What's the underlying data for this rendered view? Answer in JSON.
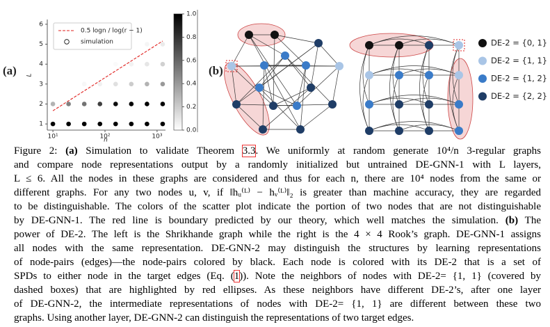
{
  "panel_labels": [
    "(a)",
    "(b)"
  ],
  "chart_data": {
    "type": "scatter",
    "xlabel": "n",
    "ylabel": "L",
    "xscale": "log",
    "xlim": [
      7.8,
      1450
    ],
    "ylim": [
      0.69,
      6.24
    ],
    "xticks": [
      {
        "value": 10,
        "label": "10¹"
      },
      {
        "value": 100,
        "label": "10²"
      },
      {
        "value": 1000,
        "label": "10³"
      }
    ],
    "yticks": [
      1,
      2,
      3,
      4,
      5,
      6
    ],
    "legend": "upper left",
    "colorbar": {
      "lim": [
        0,
        1
      ],
      "ticks": [
        {
          "value": 0,
          "label": "0.0"
        },
        0.2,
        0.4,
        0.6,
        0.8,
        {
          "value": 1,
          "label": "1.0"
        }
      ]
    },
    "series": [
      {
        "name": "0.5 logn / log(r − 1)",
        "type": "line",
        "style": "dashed",
        "color": "#e0201e",
        "x": [
          10,
          1280
        ],
        "values": [
          1.66,
          5.16
        ]
      },
      {
        "name": "simulation",
        "type": "scatter",
        "x": [
          10,
          20,
          40,
          80,
          160,
          320,
          640,
          1280,
          10,
          20,
          40,
          80,
          160,
          320,
          640,
          1280,
          40,
          80,
          160,
          320,
          640,
          1280,
          160,
          320,
          640,
          1280,
          640,
          1280
        ],
        "values": [
          1,
          1,
          1,
          1,
          1,
          1,
          1,
          1,
          2,
          2,
          2,
          2,
          2,
          2,
          2,
          2,
          3,
          3,
          3,
          3,
          3,
          3,
          4,
          4,
          4,
          4,
          5,
          5
        ],
        "shade": [
          1,
          1,
          1,
          1,
          1,
          1,
          1,
          1,
          0.3,
          0.5,
          0.55,
          0.75,
          0.95,
          1,
          1,
          1,
          0.03,
          0.06,
          0.12,
          0.2,
          0.3,
          0.4,
          0.02,
          0.05,
          0.1,
          0.18,
          0.04,
          0.08
        ]
      }
    ]
  },
  "diagram": {
    "legend": [
      "DE-2 = {0, 1}",
      "DE-2 = {1, 1}",
      "DE-2 = {1, 2}",
      "DE-2 = {2, 2}"
    ]
  },
  "caption": {
    "lines": [
      [
        "Figure 2: ",
        "(a)",
        " Simulation to validate Theorem ",
        "3.3",
        ". We uniformly at random generate 10⁴/n 3-regular graphs"
      ],
      [
        "and compare node representations output by a randomly initialized but untrained DE-GNN-1 with L layers,"
      ],
      [
        "L ≤ 6. All the nodes in these graphs are considered and thus for each n, there are 10⁴ nodes from the same or"
      ],
      [
        "different graphs. For any two nodes u, v, if ‖hᵤ⁽ᴸ⁾ − hᵥ⁽ᴸ⁾‖₂ is greater than machine accuracy, they are regarded"
      ],
      [
        "to be distinguishable. The colors of the scatter plot indicate the portion of two nodes that are not distinguishable"
      ],
      [
        "by DE-GNN-1. The red line is boundary predicted by our theory, which well matches the simulation. ",
        "(b)",
        " The"
      ],
      [
        "power of DE-2. The left is the Shrikhande graph while the right is the 4 × 4 Rook’s graph. DE-GNN-1 assigns"
      ],
      [
        "all nodes with the same representation. DE-GNN-2 may distinguish the structures by learning representations"
      ],
      [
        "of node-pairs (edges)—the node-pairs colored by black. Each node is colored with its DE-2 that is a set of"
      ],
      [
        "SPDs to either node in the target edges (Eq. (",
        "1",
        ")). Note the neighbors of nodes with DE-2= {1, 1} (covered by"
      ],
      [
        "dashed boxes) that are highlighted by red ellipses. As these neighbors have different DE-2’s, after one layer"
      ],
      [
        "of DE-GNN-2, the intermediate representations of nodes with DE-2= {1, 1} are different between these two"
      ],
      [
        "graphs. Using another layer, DE-GNN-2 can distinguish the representations of two target edges."
      ]
    ]
  }
}
